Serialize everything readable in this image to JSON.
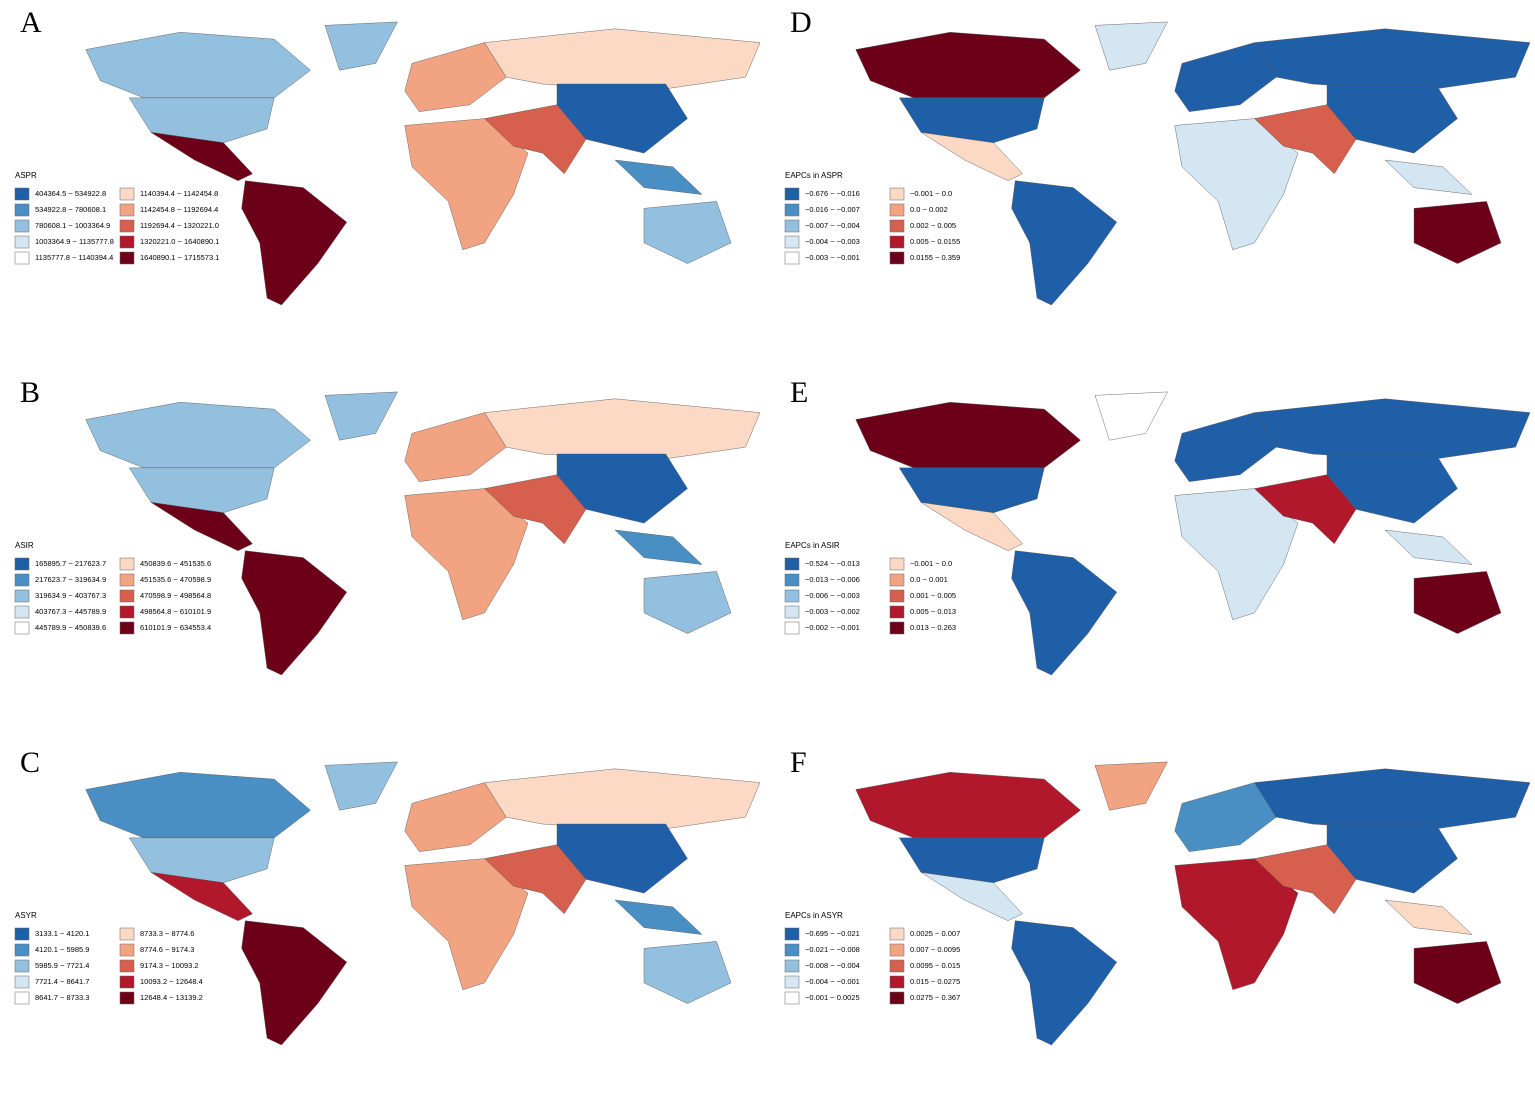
{
  "palette": [
    "#1f5fa8",
    "#4a8fc4",
    "#93c0de",
    "#d4e6f2",
    "#ffffff",
    "#fbd9c4",
    "#f2a482",
    "#d6604d",
    "#b2182b",
    "#6d0019"
  ],
  "panels": [
    {
      "letter": "A",
      "legend_title": "ASPR",
      "items": [
        "404364.5 ~ 534922.8",
        "534922.8 ~ 780608.1",
        "780608.1 ~ 1003364.9",
        "1003364.9 ~ 1135777.8",
        "1135777.8 ~ 1140394.4",
        "1140394.4 ~ 1142454.8",
        "1142454.8 ~ 1192694.4",
        "1192694.4 ~ 1320221.0",
        "1320221.0 ~ 1640890.1",
        "1640890.1 ~ 1715573.1"
      ]
    },
    {
      "letter": "B",
      "legend_title": "ASIR",
      "items": [
        "165895.7 ~ 217623.7",
        "217623.7 ~ 319634.9",
        "319634.9 ~ 403767.3",
        "403767.3 ~ 445789.9",
        "445789.9 ~ 450839.6",
        "450839.6 ~ 451535.6",
        "451535.6 ~ 470598.9",
        "470598.9 ~ 498564.8",
        "498564.8 ~ 610101.9",
        "610101.9 ~ 634553.4"
      ]
    },
    {
      "letter": "C",
      "legend_title": "ASYR",
      "items": [
        "3133.1 ~ 4120.1",
        "4120.1 ~ 5985.9",
        "5985.9 ~ 7721.4",
        "7721.4 ~ 8641.7",
        "8641.7 ~ 8733.3",
        "8733.3 ~ 8774.6",
        "8774.6 ~ 9174.3",
        "9174.3 ~ 10093.2",
        "10093.2 ~ 12648.4",
        "12648.4 ~ 13139.2"
      ]
    },
    {
      "letter": "D",
      "legend_title": "EAPCs in ASPR",
      "items": [
        "−0.676 ~ −0.016",
        "−0.016 ~ −0.007",
        "−0.007 ~ −0.004",
        "−0.004 ~ −0.003",
        "−0.003 ~ −0.001",
        "−0.001 ~ 0.0",
        "0.0 ~ 0.002",
        "0.002 ~ 0.005",
        "0.005 ~ 0.0155",
        "0.0155 ~ 0.359"
      ]
    },
    {
      "letter": "E",
      "legend_title": "EAPCs in ASIR",
      "items": [
        "−0.524 ~ −0.013",
        "−0.013 ~ −0.006",
        "−0.006 ~ −0.003",
        "−0.003 ~ −0.002",
        "−0.002 ~ −0.001",
        "−0.001 ~ 0.0",
        "0.0 ~ 0.001",
        "0.001 ~ 0.005",
        "0.005 ~ 0.013",
        "0.013 ~ 0.263"
      ]
    },
    {
      "letter": "F",
      "legend_title": "EAPCs in ASYR",
      "items": [
        "−0.695 ~ −0.021",
        "−0.021 ~ −0.008",
        "−0.008 ~ −0.004",
        "−0.004 ~ −0.001",
        "−0.001 ~ 0.0025",
        "0.0025 ~ 0.007",
        "0.007 ~ 0.0095",
        "0.0095 ~ 0.015",
        "0.015 ~ 0.0275",
        "0.0275 ~ 0.367"
      ]
    }
  ]
}
